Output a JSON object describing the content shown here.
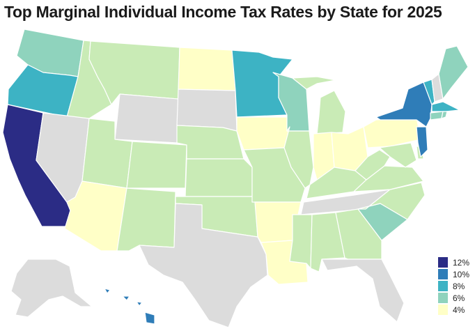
{
  "title": "Top Marginal Individual Income Tax Rates by State for 2025",
  "colors": {
    "band_12": "#2b2c85",
    "band_10": "#2f7db8",
    "band_8": "#3db3c4",
    "band_6": "#8fd3bd",
    "band_5": "#c9ebb6",
    "band_4": "#ffffc7",
    "no_tax": "#dcdcdc",
    "border": "#ffffff"
  },
  "legend": [
    {
      "label": "12%",
      "color": "#2b2c85"
    },
    {
      "label": "10%",
      "color": "#2f7db8"
    },
    {
      "label": "8%",
      "color": "#3db3c4"
    },
    {
      "label": "6%",
      "color": "#8fd3bd"
    },
    {
      "label": "4%",
      "color": "#ffffc7"
    }
  ]
}
